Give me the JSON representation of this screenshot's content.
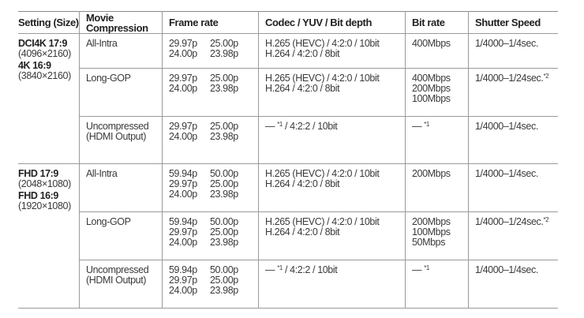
{
  "headers": [
    "Setting (Size)",
    "Movie Compression",
    "Frame rate",
    "Codec / YUV / Bit depth",
    "Bit rate",
    "Shutter Speed"
  ],
  "sections": [
    {
      "sizes": [
        {
          "name": "DCI4K 17:9",
          "res": "(4096×2160)"
        },
        {
          "name": "4K 16:9",
          "res": "(3840×2160)"
        }
      ],
      "rows": [
        {
          "compression": [
            "All-Intra"
          ],
          "frame_rates": [
            "29.97p",
            "25.00p",
            "24.00p",
            "23.98p"
          ],
          "codec": [
            "H.265 (HEVC) / 4:2:0 / 10bit",
            "H.264 / 4:2:0 / 8bit"
          ],
          "bit_rate": [
            "400Mbps"
          ],
          "shutter": "1/4000–1/4sec.",
          "shutter_note": ""
        },
        {
          "compression": [
            "Long-GOP"
          ],
          "frame_rates": [
            "29.97p",
            "25.00p",
            "24.00p",
            "23.98p"
          ],
          "codec": [
            "H.265 (HEVC) / 4:2:0 / 10bit",
            "H.264 / 4:2:0 / 8bit"
          ],
          "bit_rate": [
            "400Mbps",
            "200Mbps",
            "100Mbps"
          ],
          "shutter": "1/4000–1/24sec.",
          "shutter_note": "*2"
        },
        {
          "compression": [
            "Uncompressed",
            "(HDMI Output)"
          ],
          "frame_rates": [
            "29.97p",
            "25.00p",
            "24.00p",
            "23.98p"
          ],
          "codec": [
            "— ",
            "*1",
            " / 4:2:2 / 10bit"
          ],
          "bit_rate": [
            "— ",
            "*1"
          ],
          "shutter": "1/4000–1/4sec.",
          "shutter_note": ""
        }
      ]
    },
    {
      "sizes": [
        {
          "name": "FHD 17:9",
          "res": "(2048×1080)"
        },
        {
          "name": "FHD 16:9",
          "res": "(1920×1080)"
        }
      ],
      "rows": [
        {
          "compression": [
            "All-Intra"
          ],
          "frame_rates": [
            "59.94p",
            "50.00p",
            "29.97p",
            "25.00p",
            "24.00p",
            "23.98p"
          ],
          "codec": [
            "H.265 (HEVC) / 4:2:0 / 10bit",
            "H.264 / 4:2:0 / 8bit"
          ],
          "bit_rate": [
            "200Mbps"
          ],
          "shutter": "1/4000–1/4sec.",
          "shutter_note": ""
        },
        {
          "compression": [
            "Long-GOP"
          ],
          "frame_rates": [
            "59.94p",
            "50.00p",
            "29.97p",
            "25.00p",
            "24.00p",
            "23.98p"
          ],
          "codec": [
            "H.265 (HEVC) / 4:2:0 / 10bit",
            "H.264 / 4:2:0 / 8bit"
          ],
          "bit_rate": [
            "200Mbps",
            "100Mbps",
            "50Mbps"
          ],
          "shutter": "1/4000–1/24sec.",
          "shutter_note": "*2"
        },
        {
          "compression": [
            "Uncompressed",
            "(HDMI Output)"
          ],
          "frame_rates": [
            "59.94p",
            "50.00p",
            "29.97p",
            "25.00p",
            "24.00p",
            "23.98p"
          ],
          "codec": [
            "— ",
            "*1",
            " / 4:2:2 / 10bit"
          ],
          "bit_rate": [
            "— ",
            "*1"
          ],
          "shutter": "1/4000–1/4sec.",
          "shutter_note": ""
        }
      ]
    }
  ]
}
